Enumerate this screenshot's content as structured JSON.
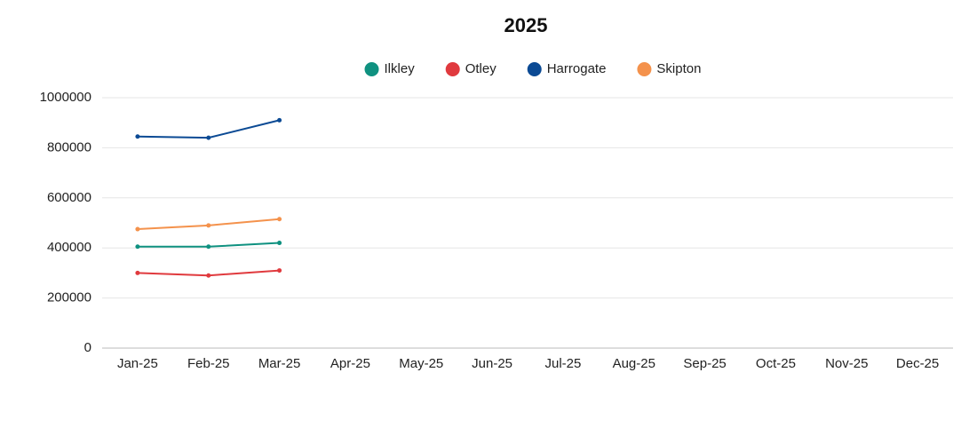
{
  "chart_data": {
    "type": "line",
    "title": "2025",
    "categories": [
      "Jan-25",
      "Feb-25",
      "Mar-25",
      "Apr-25",
      "May-25",
      "Jun-25",
      "Jul-25",
      "Aug-25",
      "Sep-25",
      "Oct-25",
      "Nov-25",
      "Dec-25"
    ],
    "series": [
      {
        "name": "Ilkley",
        "color": "#0f9180",
        "values": [
          405000,
          405000,
          420000,
          null,
          null,
          null,
          null,
          null,
          null,
          null,
          null,
          null
        ]
      },
      {
        "name": "Otley",
        "color": "#e03a3e",
        "values": [
          300000,
          290000,
          310000,
          null,
          null,
          null,
          null,
          null,
          null,
          null,
          null,
          null
        ]
      },
      {
        "name": "Harrogate",
        "color": "#0b4a94",
        "values": [
          845000,
          840000,
          910000,
          null,
          null,
          null,
          null,
          null,
          null,
          null,
          null,
          null
        ]
      },
      {
        "name": "Skipton",
        "color": "#f4924c",
        "values": [
          475000,
          490000,
          515000,
          null,
          null,
          null,
          null,
          null,
          null,
          null,
          null,
          null
        ]
      }
    ],
    "ylim": [
      0,
      1000000
    ],
    "yticks": [
      0,
      200000,
      400000,
      600000,
      800000,
      1000000
    ],
    "grid": true,
    "legend": "top"
  }
}
